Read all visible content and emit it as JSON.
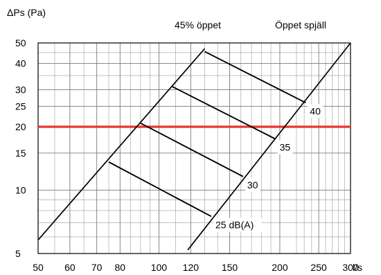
{
  "chart_data": {
    "type": "line",
    "title": "",
    "ylabel": "ΔPs (Pa)",
    "xlabel": "l/s",
    "x_scale": "log",
    "y_scale": "log",
    "xlim": [
      50,
      300
    ],
    "ylim": [
      5,
      50
    ],
    "grid": true,
    "x_ticks": [
      50,
      60,
      70,
      80,
      100,
      120,
      150,
      200,
      250,
      300
    ],
    "x_tick_labels": [
      "50",
      "60",
      "70",
      "80",
      "100",
      "120",
      "150",
      "200",
      "250",
      "300"
    ],
    "x_unit": "l/s",
    "y_ticks": [
      5,
      10,
      15,
      20,
      25,
      30,
      40,
      50
    ],
    "y_tick_labels": [
      "5",
      "10",
      "15",
      "20",
      "25",
      "30",
      "40",
      "50"
    ],
    "header_labels": [
      "45% öppet",
      "Öppet spjäll"
    ],
    "series": [
      {
        "name": "45% öppet",
        "kind": "damper",
        "points": [
          [
            50,
            5.8
          ],
          [
            130,
            47
          ]
        ]
      },
      {
        "name": "Öppet spjäll",
        "kind": "damper",
        "points": [
          [
            118,
            5.2
          ],
          [
            300,
            50
          ]
        ]
      },
      {
        "name": "25 dB(A)",
        "kind": "sound",
        "points": [
          [
            75,
            13.6
          ],
          [
            135,
            7.5
          ]
        ]
      },
      {
        "name": "30",
        "kind": "sound",
        "points": [
          [
            90,
            20.8
          ],
          [
            162,
            11.6
          ]
        ]
      },
      {
        "name": "35",
        "kind": "sound",
        "points": [
          [
            108,
            31
          ],
          [
            195,
            17.5
          ]
        ]
      },
      {
        "name": "40",
        "kind": "sound",
        "points": [
          [
            130,
            45.5
          ],
          [
            232,
            26
          ]
        ]
      }
    ],
    "reference_line": {
      "y": 20,
      "color": "#e8352b"
    },
    "colors": {
      "grid": "#9a9a9a",
      "lines": "#000000",
      "reference": "#e8352b"
    }
  }
}
